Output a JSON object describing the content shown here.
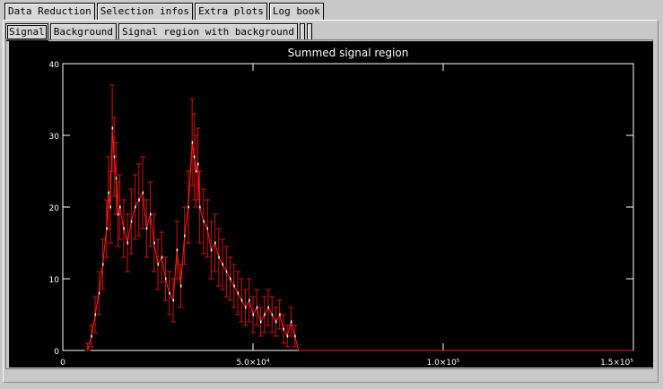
{
  "tabs_top": [
    "Data Reduction",
    "Selection infos",
    "Extra plots",
    "Log book"
  ],
  "tabs_sub": [
    "Signal",
    "Background",
    "Signal region with background"
  ],
  "chart_data": {
    "type": "line",
    "title": "Summed signal region",
    "xlim": [
      0,
      150000
    ],
    "ylim": [
      0,
      40
    ],
    "x_ticks": [
      "0",
      "5.0×10⁴",
      "1.0×10⁵",
      "1.5×10⁵"
    ],
    "x_tick_values": [
      0,
      50000,
      100000,
      150000
    ],
    "y_ticks": [
      "0",
      "10",
      "20",
      "30",
      "40"
    ],
    "y_tick_values": [
      0,
      10,
      20,
      30,
      40
    ],
    "series": [
      {
        "x": [
          6500,
          7500,
          8500,
          9500,
          10500,
          11500,
          12000,
          12500,
          13000,
          13500,
          14000,
          14500,
          15000,
          16000,
          17000,
          18000,
          19000,
          20000,
          21000,
          22000,
          23000,
          24000,
          25000,
          26000,
          27000,
          28000,
          29000,
          30000,
          31000,
          32000,
          33000,
          34000,
          34500,
          35000,
          35500,
          36000,
          37000,
          38000,
          39000,
          40000,
          41000,
          42000,
          43000,
          44000,
          45000,
          46000,
          47000,
          48000,
          49000,
          50000,
          51000,
          52000,
          53000,
          54000,
          55000,
          56000,
          57000,
          58000,
          59000,
          60000,
          61000,
          62000,
          70000,
          90000,
          110000,
          130000,
          150000
        ],
        "y": [
          0,
          2,
          5,
          8,
          12,
          17,
          22,
          20,
          31,
          27,
          24,
          19,
          20,
          17,
          15,
          18,
          20,
          21,
          22,
          17,
          19,
          15,
          12,
          13,
          10,
          8,
          7,
          14,
          9,
          16,
          20,
          29,
          27,
          25,
          26,
          20,
          18,
          17,
          14,
          15,
          13,
          12,
          11,
          10,
          9,
          8,
          7,
          6,
          7,
          5,
          6,
          4,
          5,
          6,
          5,
          4,
          5,
          3,
          2,
          4,
          2,
          0,
          0,
          0,
          0,
          0,
          0
        ],
        "err": [
          1,
          1.5,
          2.5,
          3,
          3.5,
          4,
          5,
          5,
          6,
          5.5,
          5,
          4.5,
          4.5,
          4,
          4,
          4.5,
          4.5,
          5,
          5,
          4,
          4.5,
          4,
          3.5,
          3.5,
          3,
          3,
          3,
          4,
          3,
          4,
          5,
          6,
          6,
          5,
          5,
          5,
          4.5,
          4,
          4,
          4,
          4,
          3.5,
          3.5,
          3,
          3,
          3,
          3,
          2.5,
          3,
          2.5,
          2.5,
          2,
          2.5,
          2.5,
          2.5,
          2,
          2,
          2,
          1.5,
          2,
          1.5,
          0,
          0,
          0,
          0,
          0,
          0
        ]
      }
    ]
  }
}
